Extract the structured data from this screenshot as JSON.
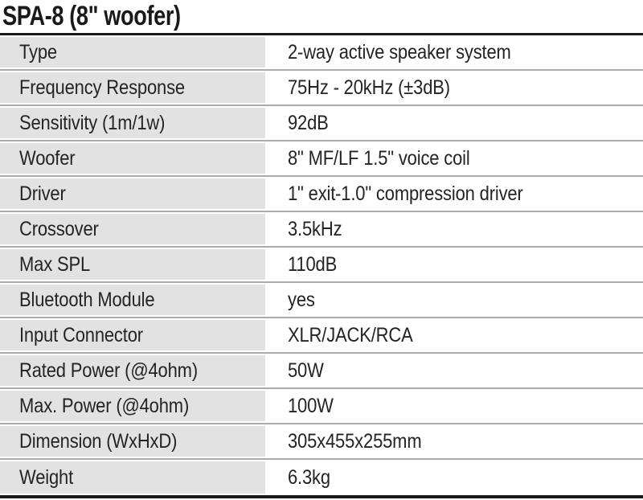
{
  "page": {
    "title": "SPA-8 (8\" woofer)"
  },
  "spec_table": {
    "rows": [
      {
        "label": "Type",
        "value": "2-way active speaker system"
      },
      {
        "label": "Frequency Response",
        "value": "75Hz - 20kHz (±3dB)"
      },
      {
        "label": "Sensitivity (1m/1w)",
        "value": "92dB"
      },
      {
        "label": "Woofer",
        "value": "8\" MF/LF 1.5\" voice coil"
      },
      {
        "label": "Driver",
        "value": "1\" exit-1.0\" compression driver"
      },
      {
        "label": "Crossover",
        "value": "3.5kHz"
      },
      {
        "label": "Max SPL",
        "value": "110dB"
      },
      {
        "label": "Bluetooth Module",
        "value": "yes"
      },
      {
        "label": "Input Connector",
        "value": "XLR/JACK/RCA"
      },
      {
        "label": "Rated Power (@4ohm)",
        "value": "50W"
      },
      {
        "label": "Max. Power (@4ohm)",
        "value": "100W"
      },
      {
        "label": "Dimension (WxHxD)",
        "value": "305x455x255mm"
      },
      {
        "label": "Weight",
        "value": "6.3kg"
      }
    ]
  },
  "colors": {
    "frame": "#1a1a1a",
    "divider": "#ababab",
    "label_bg": "#e2e2e2",
    "text": "#242424",
    "title_text": "#1a1a1a",
    "background": "#ffffff"
  }
}
